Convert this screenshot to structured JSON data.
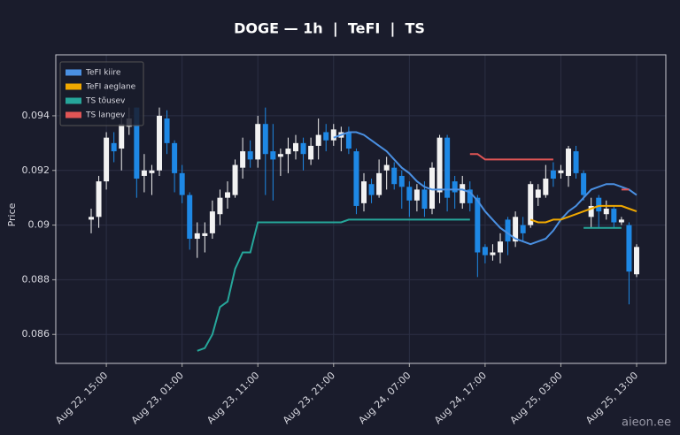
{
  "chart_data": {
    "type": "candlestick",
    "title": "DOGE — 1h  |  TeFI  |  TS",
    "ylabel": "Price",
    "x": [
      "Aug 22, 13:00",
      "Aug 22, 14:00",
      "Aug 22, 15:00",
      "Aug 22, 16:00",
      "Aug 22, 17:00",
      "Aug 22, 18:00",
      "Aug 22, 19:00",
      "Aug 22, 20:00",
      "Aug 22, 21:00",
      "Aug 22, 22:00",
      "Aug 22, 23:00",
      "Aug 23, 00:00",
      "Aug 23, 01:00",
      "Aug 23, 02:00",
      "Aug 23, 03:00",
      "Aug 23, 04:00",
      "Aug 23, 05:00",
      "Aug 23, 06:00",
      "Aug 23, 07:00",
      "Aug 23, 08:00",
      "Aug 23, 09:00",
      "Aug 23, 10:00",
      "Aug 23, 11:00",
      "Aug 23, 12:00",
      "Aug 23, 13:00",
      "Aug 23, 14:00",
      "Aug 23, 15:00",
      "Aug 23, 16:00",
      "Aug 23, 17:00",
      "Aug 23, 18:00",
      "Aug 23, 19:00",
      "Aug 23, 20:00",
      "Aug 23, 21:00",
      "Aug 23, 22:00",
      "Aug 23, 23:00",
      "Aug 24, 00:00",
      "Aug 24, 01:00",
      "Aug 24, 02:00",
      "Aug 24, 03:00",
      "Aug 24, 04:00",
      "Aug 24, 05:00",
      "Aug 24, 06:00",
      "Aug 24, 07:00",
      "Aug 24, 08:00",
      "Aug 24, 09:00",
      "Aug 24, 10:00",
      "Aug 24, 11:00",
      "Aug 24, 12:00",
      "Aug 24, 13:00",
      "Aug 24, 14:00",
      "Aug 24, 15:00",
      "Aug 24, 16:00",
      "Aug 24, 17:00",
      "Aug 24, 18:00",
      "Aug 24, 19:00",
      "Aug 24, 20:00",
      "Aug 24, 21:00",
      "Aug 24, 22:00",
      "Aug 24, 23:00",
      "Aug 25, 00:00",
      "Aug 25, 01:00",
      "Aug 25, 02:00",
      "Aug 25, 03:00",
      "Aug 25, 04:00",
      "Aug 25, 05:00",
      "Aug 25, 06:00",
      "Aug 25, 07:00",
      "Aug 25, 08:00",
      "Aug 25, 09:00",
      "Aug 25, 10:00",
      "Aug 25, 11:00",
      "Aug 25, 12:00",
      "Aug 25, 13:00"
    ],
    "open": [
      0.0902,
      0.0903,
      0.0916,
      0.093,
      0.0928,
      0.0936,
      0.0943,
      0.0918,
      0.0919,
      0.092,
      0.0939,
      0.093,
      0.0919,
      0.0911,
      0.0895,
      0.0896,
      0.0897,
      0.0904,
      0.091,
      0.0911,
      0.0921,
      0.0927,
      0.0924,
      0.0937,
      0.0927,
      0.0925,
      0.0926,
      0.0927,
      0.093,
      0.0924,
      0.0929,
      0.0934,
      0.0931,
      0.0932,
      0.0934,
      0.0927,
      0.0908,
      0.0915,
      0.0911,
      0.092,
      0.0921,
      0.0918,
      0.0914,
      0.0909,
      0.0913,
      0.0906,
      0.0912,
      0.0932,
      0.0916,
      0.0908,
      0.0913,
      0.091,
      0.0892,
      0.0889,
      0.089,
      0.0902,
      0.0894,
      0.09,
      0.09,
      0.091,
      0.0911,
      0.092,
      0.0919,
      0.0918,
      0.0927,
      0.0919,
      0.0903,
      0.091,
      0.0904,
      0.0906,
      0.0901,
      0.09,
      0.0882
    ],
    "high": [
      0.0906,
      0.0918,
      0.0934,
      0.0934,
      0.0941,
      0.0943,
      0.0943,
      0.0926,
      0.0922,
      0.0943,
      0.0942,
      0.0931,
      0.0922,
      0.0912,
      0.0901,
      0.0901,
      0.0909,
      0.0913,
      0.0916,
      0.0924,
      0.0932,
      0.0931,
      0.094,
      0.0943,
      0.0937,
      0.0928,
      0.0932,
      0.0933,
      0.0932,
      0.0932,
      0.0939,
      0.0937,
      0.0937,
      0.0936,
      0.0936,
      0.0928,
      0.0919,
      0.0917,
      0.0924,
      0.0925,
      0.0923,
      0.092,
      0.0916,
      0.0915,
      0.0916,
      0.0923,
      0.0933,
      0.0933,
      0.0918,
      0.0918,
      0.0916,
      0.0911,
      0.0893,
      0.0893,
      0.0897,
      0.0903,
      0.0905,
      0.0903,
      0.0916,
      0.0915,
      0.0922,
      0.0923,
      0.0922,
      0.0929,
      0.0929,
      0.092,
      0.091,
      0.0911,
      0.0909,
      0.0907,
      0.0903,
      0.0901,
      0.0893
    ],
    "low": [
      0.0897,
      0.0899,
      0.0913,
      0.0923,
      0.092,
      0.0933,
      0.091,
      0.0912,
      0.0911,
      0.0918,
      0.0926,
      0.0912,
      0.0908,
      0.0891,
      0.0888,
      0.089,
      0.0895,
      0.09,
      0.0906,
      0.091,
      0.0917,
      0.0921,
      0.0921,
      0.0911,
      0.0909,
      0.0918,
      0.0919,
      0.0924,
      0.092,
      0.0922,
      0.0924,
      0.0927,
      0.0929,
      0.0927,
      0.0926,
      0.0904,
      0.0905,
      0.0908,
      0.091,
      0.0913,
      0.0913,
      0.0906,
      0.0903,
      0.0905,
      0.0903,
      0.0904,
      0.0908,
      0.0905,
      0.0906,
      0.0906,
      0.0905,
      0.0881,
      0.0886,
      0.0887,
      0.0886,
      0.0889,
      0.0892,
      0.0894,
      0.0899,
      0.0907,
      0.091,
      0.0914,
      0.0917,
      0.0914,
      0.0917,
      0.0909,
      0.0899,
      0.0899,
      0.0902,
      0.0899,
      0.09,
      0.0871,
      0.0881
    ],
    "close": [
      0.0903,
      0.0916,
      0.0932,
      0.0927,
      0.0937,
      0.0939,
      0.0917,
      0.092,
      0.092,
      0.094,
      0.093,
      0.0919,
      0.0911,
      0.0895,
      0.0897,
      0.0897,
      0.0905,
      0.091,
      0.0912,
      0.0922,
      0.0927,
      0.0924,
      0.0937,
      0.0926,
      0.0924,
      0.0926,
      0.0928,
      0.093,
      0.0926,
      0.0929,
      0.0933,
      0.0931,
      0.0935,
      0.0934,
      0.0928,
      0.0907,
      0.0916,
      0.0911,
      0.0919,
      0.0922,
      0.0915,
      0.0914,
      0.0909,
      0.0913,
      0.0906,
      0.0921,
      0.0932,
      0.091,
      0.0912,
      0.0915,
      0.0908,
      0.089,
      0.0889,
      0.089,
      0.0894,
      0.0894,
      0.0903,
      0.0897,
      0.0915,
      0.0913,
      0.0917,
      0.0917,
      0.092,
      0.0928,
      0.0919,
      0.0911,
      0.0907,
      0.0905,
      0.0906,
      0.0901,
      0.0902,
      0.0883,
      0.0892
    ],
    "up_color": "#f2f2f2",
    "down_color": "#1e88e5",
    "lines": [
      {
        "name": "TeFI kiire",
        "color": "#4a90e2",
        "values": [
          null,
          null,
          null,
          null,
          null,
          null,
          null,
          null,
          null,
          null,
          null,
          null,
          null,
          null,
          null,
          null,
          null,
          null,
          null,
          null,
          null,
          null,
          null,
          null,
          null,
          null,
          null,
          null,
          null,
          null,
          null,
          null,
          0.0932,
          0.0933,
          0.0934,
          0.0934,
          0.0933,
          0.0931,
          0.0929,
          0.0927,
          0.0924,
          0.0921,
          0.0919,
          0.0916,
          0.0914,
          0.0913,
          0.0913,
          0.0913,
          0.0913,
          0.0913,
          0.0912,
          0.0909,
          0.0905,
          0.0902,
          0.0899,
          0.0897,
          0.0895,
          0.0894,
          0.0893,
          0.0894,
          0.0895,
          0.0898,
          0.0902,
          0.0905,
          0.0907,
          0.091,
          0.0913,
          0.0914,
          0.0915,
          0.0915,
          0.0914,
          0.0913,
          0.0911
        ]
      },
      {
        "name": "TeFI aeglane",
        "color": "#f0a800",
        "values": [
          null,
          null,
          null,
          null,
          null,
          null,
          null,
          null,
          null,
          null,
          null,
          null,
          null,
          null,
          null,
          null,
          null,
          null,
          null,
          null,
          null,
          null,
          null,
          null,
          null,
          null,
          null,
          null,
          null,
          null,
          null,
          null,
          null,
          null,
          null,
          null,
          null,
          null,
          null,
          null,
          null,
          null,
          null,
          null,
          null,
          null,
          null,
          null,
          null,
          null,
          null,
          null,
          null,
          null,
          null,
          null,
          null,
          null,
          0.0902,
          0.0901,
          0.0901,
          0.0902,
          0.0902,
          0.0903,
          0.0904,
          0.0905,
          0.0906,
          0.0907,
          0.0907,
          0.0907,
          0.0907,
          0.0906,
          0.0905
        ]
      },
      {
        "name": "TS tõusev",
        "color": "#26a69a",
        "values": [
          null,
          null,
          null,
          null,
          null,
          null,
          null,
          null,
          null,
          null,
          null,
          null,
          null,
          null,
          0.0854,
          0.0855,
          0.086,
          0.087,
          0.0872,
          0.0884,
          0.089,
          0.089,
          0.0901,
          0.0901,
          0.0901,
          0.0901,
          0.0901,
          0.0901,
          0.0901,
          0.0901,
          0.0901,
          0.0901,
          0.0901,
          0.0901,
          0.0902,
          0.0902,
          0.0902,
          0.0902,
          0.0902,
          0.0902,
          0.0902,
          0.0902,
          0.0902,
          0.0902,
          0.0902,
          0.0902,
          0.0902,
          0.0902,
          0.0902,
          0.0902,
          0.0902,
          null,
          null,
          null,
          null,
          null,
          null,
          null,
          null,
          null,
          null,
          null,
          null,
          null,
          null,
          0.0899,
          0.0899,
          0.0899,
          0.0899,
          0.0899,
          0.0899,
          null,
          null
        ]
      },
      {
        "name": "TS langev",
        "color": "#e05555",
        "values": [
          null,
          null,
          null,
          null,
          null,
          null,
          null,
          null,
          null,
          null,
          null,
          null,
          null,
          null,
          null,
          null,
          null,
          null,
          null,
          null,
          null,
          null,
          null,
          null,
          null,
          null,
          null,
          null,
          null,
          null,
          null,
          null,
          null,
          null,
          null,
          null,
          null,
          null,
          null,
          null,
          null,
          null,
          null,
          null,
          null,
          null,
          null,
          null,
          null,
          null,
          0.0926,
          0.0926,
          0.0924,
          0.0924,
          0.0924,
          0.0924,
          0.0924,
          0.0924,
          0.0924,
          0.0924,
          0.0924,
          0.0924,
          null,
          null,
          null,
          null,
          null,
          null,
          null,
          null,
          0.0913,
          0.0913,
          null
        ]
      }
    ],
    "ylim": [
      0.08494,
      0.09623
    ],
    "yticks": [
      0.086,
      0.088,
      0.09,
      0.092,
      0.094
    ],
    "xticks": [
      "Aug 22, 15:00",
      "Aug 23, 01:00",
      "Aug 23, 11:00",
      "Aug 23, 21:00",
      "Aug 24, 07:00",
      "Aug 24, 17:00",
      "Aug 25, 03:00",
      "Aug 25, 13:00"
    ],
    "grid": true,
    "legend": "upper left"
  },
  "watermark": "aieon.ee"
}
